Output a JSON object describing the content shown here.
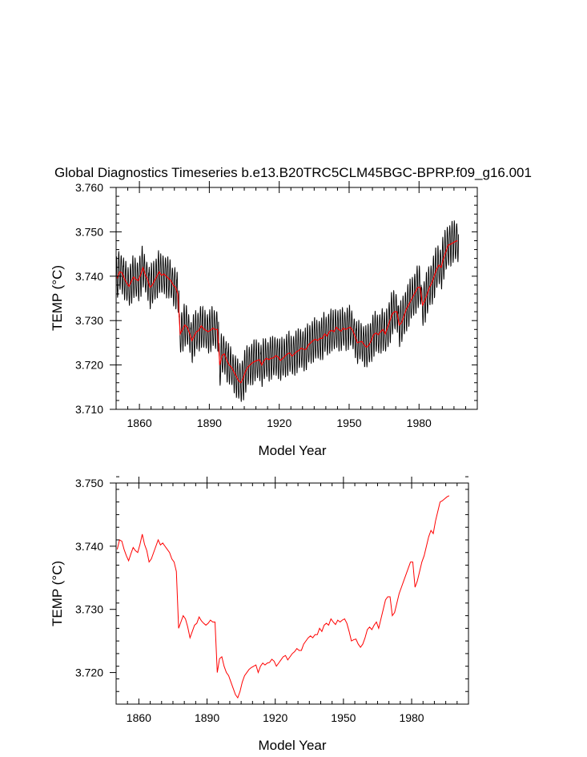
{
  "title": "Global Diagnostics Timeseries b.e13.B20TRC5CLM45BGC-BPRP.f09_g16.001",
  "colors": {
    "monthly": "#000000",
    "annual": "#ff0000",
    "axes": "#000000",
    "background": "#ffffff"
  },
  "chart_data": [
    {
      "type": "line",
      "panel": "top",
      "title": "Global Diagnostics Timeseries b.e13.B20TRC5CLM45BGC-BPRP.f09_g16.001",
      "xlabel": "Model Year",
      "ylabel": "TEMP (°C)",
      "xlim": [
        1850,
        2005
      ],
      "ylim": [
        3.71,
        3.76
      ],
      "xticks": [
        1860,
        1890,
        1920,
        1950,
        1980
      ],
      "xtick_labels": [
        "1860",
        "1890",
        "1920",
        "1950",
        "1980"
      ],
      "yticks": [
        3.71,
        3.72,
        3.73,
        3.74,
        3.75,
        3.76
      ],
      "ytick_labels": [
        "3.710",
        "3.720",
        "3.730",
        "3.740",
        "3.750",
        "3.760"
      ],
      "series": [
        {
          "name": "monthly",
          "color": "#000000",
          "seasonal_amplitude": 0.0045,
          "note": "monthly values oscillating around the annual mean"
        },
        {
          "name": "annual mean",
          "color": "#ff0000",
          "source": "annual_mean"
        }
      ]
    },
    {
      "type": "line",
      "panel": "bottom",
      "xlabel": "Model Year",
      "ylabel": "TEMP (°C)",
      "xlim": [
        1850,
        2005
      ],
      "ylim": [
        3.715,
        3.75
      ],
      "xticks": [
        1860,
        1890,
        1920,
        1950,
        1980
      ],
      "xtick_labels": [
        "1860",
        "1890",
        "1920",
        "1950",
        "1980"
      ],
      "yticks": [
        3.72,
        3.73,
        3.74,
        3.75
      ],
      "ytick_labels": [
        "3.720",
        "3.730",
        "3.740",
        "3.750"
      ],
      "series": [
        {
          "name": "annual mean",
          "color": "#ff0000",
          "source": "annual_mean"
        }
      ]
    }
  ],
  "annual_mean": {
    "start_year": 1850,
    "values": [
      3.7395,
      3.741,
      3.7408,
      3.7395,
      3.7385,
      3.7377,
      3.7388,
      3.7398,
      3.7393,
      3.739,
      3.7403,
      3.7419,
      3.7403,
      3.7393,
      3.7375,
      3.738,
      3.739,
      3.74,
      3.741,
      3.7402,
      3.7405,
      3.74,
      3.7395,
      3.739,
      3.738,
      3.7375,
      3.736,
      3.727,
      3.728,
      3.729,
      3.7285,
      3.7272,
      3.7255,
      3.7265,
      3.7275,
      3.7278,
      3.7288,
      3.7282,
      3.7278,
      3.7275,
      3.7278,
      3.7283,
      3.728,
      3.728,
      3.72,
      3.7222,
      3.7225,
      3.721,
      3.72,
      3.7195,
      3.7185,
      3.7175,
      3.7165,
      3.716,
      3.717,
      3.7185,
      3.7195,
      3.72,
      3.7205,
      3.7208,
      3.721,
      3.7212,
      3.72,
      3.721,
      3.7215,
      3.7212,
      3.7215,
      3.7216,
      3.7221,
      3.7218,
      3.721,
      3.7215,
      3.722,
      3.7225,
      3.7227,
      3.722,
      3.7225,
      3.723,
      3.7233,
      3.7238,
      3.7235,
      3.7235,
      3.7245,
      3.725,
      3.7255,
      3.7258,
      3.7255,
      3.726,
      3.726,
      3.727,
      3.7265,
      3.7275,
      3.7278,
      3.7275,
      3.7285,
      3.728,
      3.7276,
      3.7283,
      3.728,
      3.7283,
      3.7285,
      3.7278,
      3.7265,
      3.725,
      3.7252,
      3.7253,
      3.7245,
      3.724,
      3.7245,
      3.7255,
      3.7268,
      3.7272,
      3.7268,
      3.7275,
      3.728,
      3.727,
      3.7285,
      3.73,
      3.7315,
      3.732,
      3.732,
      3.729,
      3.7295,
      3.731,
      3.7325,
      3.7335,
      3.7345,
      3.7355,
      3.7365,
      3.7375,
      3.7375,
      3.7335,
      3.7345,
      3.736,
      3.7375,
      3.7385,
      3.74,
      3.7415,
      3.7425,
      3.742,
      3.744,
      3.7455,
      3.747,
      3.7472,
      3.7475,
      3.7478,
      3.748
    ]
  }
}
